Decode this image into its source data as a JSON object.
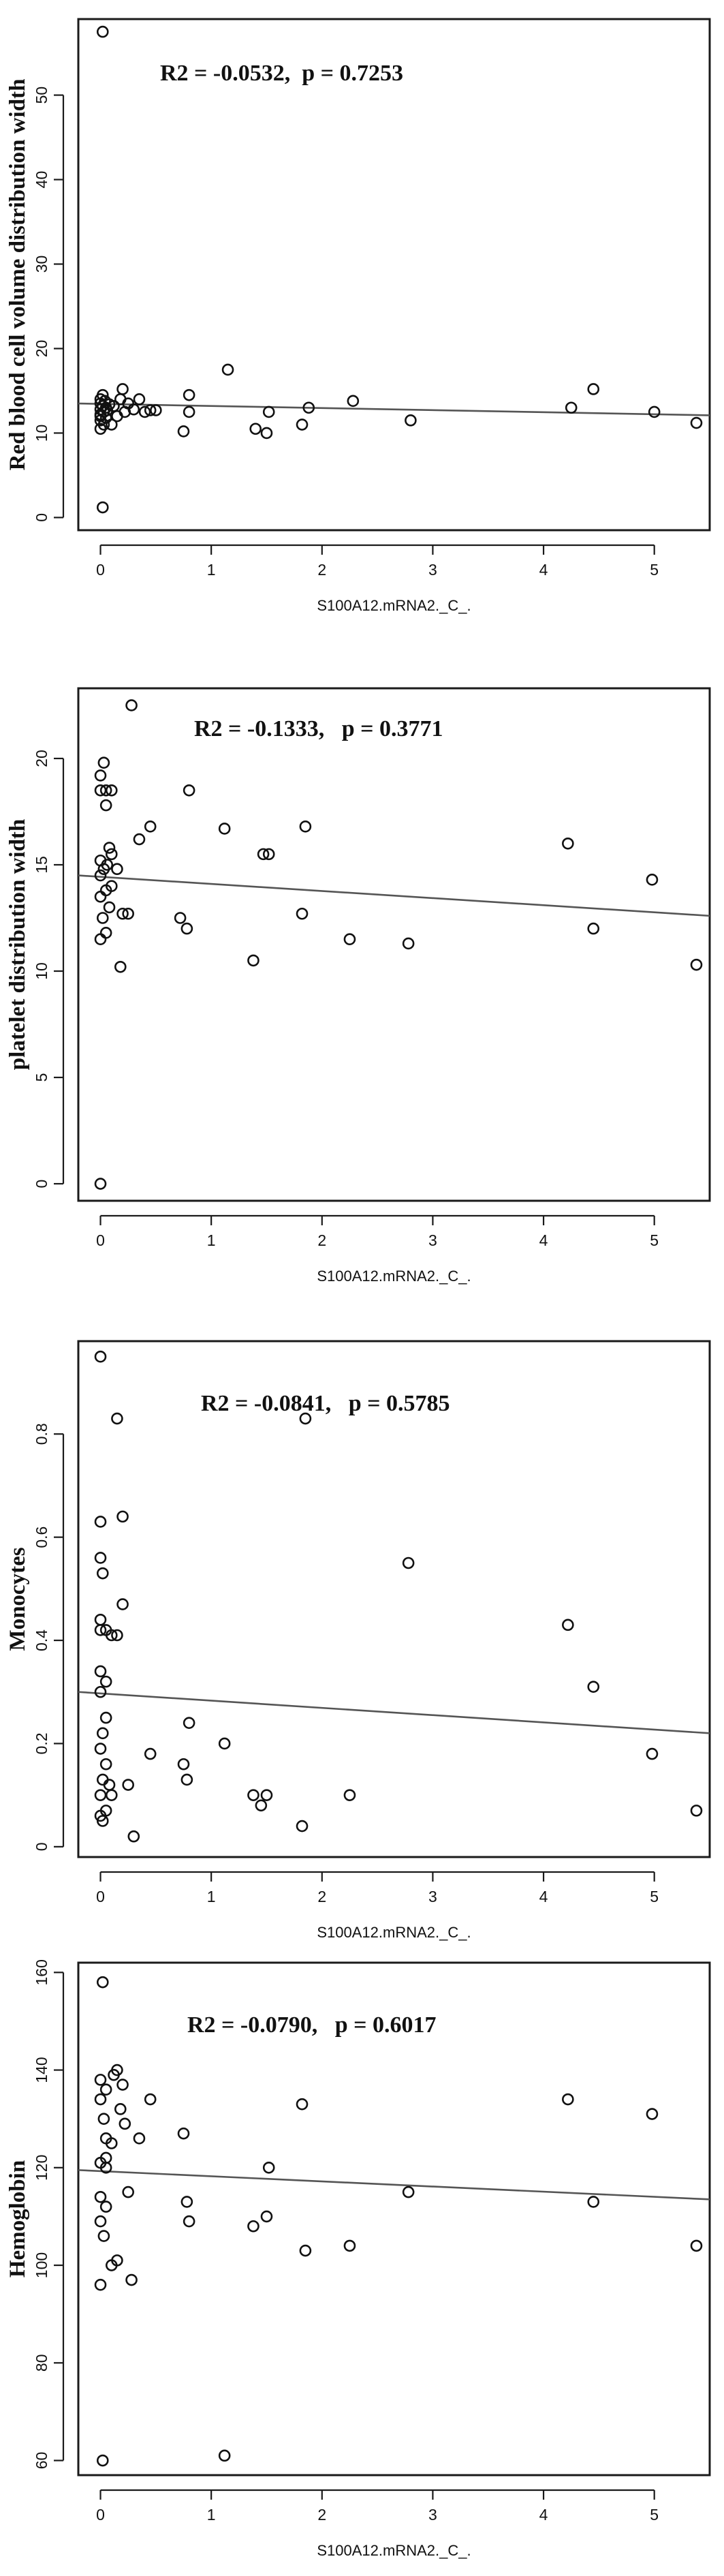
{
  "chart_data": [
    {
      "type": "scatter",
      "annotation": "R2 = -0.0532,  p = 0.7253",
      "xlabel": "S100A12.mRNA2._C_.",
      "ylabel": "Red blood cell volume distribution width",
      "xlim": [
        -0.2,
        5.5
      ],
      "ylim": [
        -1.5,
        59
      ],
      "xticks": [
        0,
        1,
        2,
        3,
        4,
        5
      ],
      "yticks": [
        0,
        10,
        20,
        30,
        40,
        50
      ],
      "fit_line": {
        "x": [
          -0.2,
          5.5
        ],
        "y": [
          13.5,
          12.1
        ]
      },
      "points": [
        [
          0.02,
          57.5
        ],
        [
          0.02,
          1.2
        ],
        [
          0.0,
          10.5
        ],
        [
          0.03,
          11.0
        ],
        [
          0.0,
          11.5
        ],
        [
          0.05,
          11.8
        ],
        [
          0.0,
          12.2
        ],
        [
          0.03,
          12.5
        ],
        [
          0.0,
          12.8
        ],
        [
          0.05,
          13.0
        ],
        [
          0.02,
          13.2
        ],
        [
          0.0,
          13.5
        ],
        [
          0.04,
          13.8
        ],
        [
          0.0,
          14.0
        ],
        [
          0.02,
          14.5
        ],
        [
          0.0,
          12.0
        ],
        [
          0.06,
          12.7
        ],
        [
          0.08,
          13.4
        ],
        [
          0.1,
          11.0
        ],
        [
          0.12,
          13.2
        ],
        [
          0.15,
          12.0
        ],
        [
          0.18,
          14.0
        ],
        [
          0.2,
          15.2
        ],
        [
          0.22,
          12.5
        ],
        [
          0.25,
          13.5
        ],
        [
          0.3,
          12.8
        ],
        [
          0.35,
          14.0
        ],
        [
          0.4,
          12.5
        ],
        [
          0.45,
          12.7
        ],
        [
          0.5,
          12.7
        ],
        [
          0.75,
          10.2
        ],
        [
          0.8,
          12.5
        ],
        [
          0.8,
          14.5
        ],
        [
          1.15,
          17.5
        ],
        [
          1.4,
          10.5
        ],
        [
          1.5,
          10.0
        ],
        [
          1.52,
          12.5
        ],
        [
          1.82,
          11.0
        ],
        [
          1.88,
          13.0
        ],
        [
          2.28,
          13.8
        ],
        [
          2.8,
          11.5
        ],
        [
          4.25,
          13.0
        ],
        [
          4.45,
          15.2
        ],
        [
          5.0,
          12.5
        ],
        [
          5.38,
          11.2
        ]
      ]
    },
    {
      "type": "scatter",
      "annotation": "R2 = -0.1333,   p = 0.3771",
      "xlabel": "S100A12.mRNA2._C_.",
      "ylabel": "platelet distribution width",
      "xlim": [
        -0.2,
        5.5
      ],
      "ylim": [
        -0.8,
        23.3
      ],
      "xticks": [
        0,
        1,
        2,
        3,
        4,
        5
      ],
      "yticks": [
        0,
        5,
        10,
        15,
        20
      ],
      "fit_line": {
        "x": [
          -0.2,
          5.5
        ],
        "y": [
          14.5,
          12.6
        ]
      },
      "points": [
        [
          0.0,
          0.0
        ],
        [
          0.0,
          11.5
        ],
        [
          0.05,
          11.8
        ],
        [
          0.02,
          12.5
        ],
        [
          0.08,
          13.0
        ],
        [
          0.0,
          13.5
        ],
        [
          0.05,
          13.8
        ],
        [
          0.1,
          14.0
        ],
        [
          0.0,
          14.5
        ],
        [
          0.03,
          14.8
        ],
        [
          0.06,
          15.0
        ],
        [
          0.0,
          15.2
        ],
        [
          0.1,
          15.5
        ],
        [
          0.08,
          15.8
        ],
        [
          0.0,
          18.5
        ],
        [
          0.05,
          18.5
        ],
        [
          0.1,
          18.5
        ],
        [
          0.0,
          19.2
        ],
        [
          0.03,
          19.8
        ],
        [
          0.05,
          17.8
        ],
        [
          0.15,
          14.8
        ],
        [
          0.2,
          12.7
        ],
        [
          0.18,
          10.2
        ],
        [
          0.25,
          12.7
        ],
        [
          0.28,
          22.5
        ],
        [
          0.35,
          16.2
        ],
        [
          0.45,
          16.8
        ],
        [
          0.72,
          12.5
        ],
        [
          0.78,
          12.0
        ],
        [
          0.8,
          18.5
        ],
        [
          1.12,
          16.7
        ],
        [
          1.38,
          10.5
        ],
        [
          1.47,
          15.5
        ],
        [
          1.52,
          15.5
        ],
        [
          1.82,
          12.7
        ],
        [
          1.85,
          16.8
        ],
        [
          2.25,
          11.5
        ],
        [
          2.78,
          11.3
        ],
        [
          4.22,
          16.0
        ],
        [
          4.45,
          12.0
        ],
        [
          4.98,
          14.3
        ],
        [
          5.38,
          10.3
        ]
      ]
    },
    {
      "type": "scatter",
      "annotation": "R2 = -0.0841,   p = 0.5785",
      "xlabel": "S100A12.mRNA2._C_.",
      "ylabel": "Monocytes",
      "xlim": [
        -0.2,
        5.5
      ],
      "ylim": [
        -0.02,
        0.98
      ],
      "xticks": [
        0,
        1,
        2,
        3,
        4,
        5
      ],
      "yticks": [
        0.0,
        0.2,
        0.4,
        0.6,
        0.8
      ],
      "fit_line": {
        "x": [
          -0.2,
          5.5
        ],
        "y": [
          0.3,
          0.22
        ]
      },
      "points": [
        [
          0.0,
          0.95
        ],
        [
          0.0,
          0.63
        ],
        [
          0.0,
          0.56
        ],
        [
          0.02,
          0.53
        ],
        [
          0.0,
          0.44
        ],
        [
          0.05,
          0.42
        ],
        [
          0.0,
          0.42
        ],
        [
          0.0,
          0.34
        ],
        [
          0.05,
          0.32
        ],
        [
          0.0,
          0.3
        ],
        [
          0.05,
          0.25
        ],
        [
          0.02,
          0.22
        ],
        [
          0.0,
          0.19
        ],
        [
          0.05,
          0.16
        ],
        [
          0.02,
          0.13
        ],
        [
          0.08,
          0.12
        ],
        [
          0.0,
          0.1
        ],
        [
          0.1,
          0.1
        ],
        [
          0.05,
          0.07
        ],
        [
          0.0,
          0.06
        ],
        [
          0.02,
          0.05
        ],
        [
          0.1,
          0.41
        ],
        [
          0.15,
          0.41
        ],
        [
          0.15,
          0.83
        ],
        [
          0.2,
          0.64
        ],
        [
          0.2,
          0.47
        ],
        [
          0.25,
          0.12
        ],
        [
          0.3,
          0.02
        ],
        [
          0.45,
          0.18
        ],
        [
          0.75,
          0.16
        ],
        [
          0.78,
          0.13
        ],
        [
          0.8,
          0.24
        ],
        [
          1.12,
          0.2
        ],
        [
          1.38,
          0.1
        ],
        [
          1.45,
          0.08
        ],
        [
          1.5,
          0.1
        ],
        [
          1.82,
          0.04
        ],
        [
          1.85,
          0.83
        ],
        [
          2.25,
          0.1
        ],
        [
          2.78,
          0.55
        ],
        [
          4.22,
          0.43
        ],
        [
          4.45,
          0.31
        ],
        [
          4.98,
          0.18
        ],
        [
          5.38,
          0.07
        ]
      ]
    },
    {
      "type": "scatter",
      "annotation": "R2 = -0.0790,   p = 0.6017",
      "xlabel": "S100A12.mRNA2._C_.",
      "ylabel": "Hemoglobin",
      "xlim": [
        -0.2,
        5.5
      ],
      "ylim": [
        57,
        162
      ],
      "xticks": [
        0,
        1,
        2,
        3,
        4,
        5
      ],
      "yticks": [
        60,
        80,
        100,
        120,
        140,
        160
      ],
      "fit_line": {
        "x": [
          -0.2,
          5.5
        ],
        "y": [
          119.5,
          113.5
        ]
      },
      "points": [
        [
          0.02,
          158
        ],
        [
          0.0,
          138
        ],
        [
          0.05,
          136
        ],
        [
          0.0,
          134
        ],
        [
          0.03,
          130
        ],
        [
          0.05,
          126
        ],
        [
          0.0,
          121
        ],
        [
          0.05,
          120
        ],
        [
          0.0,
          114
        ],
        [
          0.05,
          112
        ],
        [
          0.0,
          109
        ],
        [
          0.03,
          106
        ],
        [
          0.1,
          100
        ],
        [
          0.0,
          96
        ],
        [
          0.05,
          122
        ],
        [
          0.1,
          125
        ],
        [
          0.12,
          139
        ],
        [
          0.15,
          140
        ],
        [
          0.18,
          132
        ],
        [
          0.2,
          137
        ],
        [
          0.22,
          129
        ],
        [
          0.25,
          115
        ],
        [
          0.28,
          97
        ],
        [
          0.35,
          126
        ],
        [
          0.45,
          134
        ],
        [
          0.02,
          60
        ],
        [
          0.15,
          101
        ],
        [
          0.75,
          127
        ],
        [
          0.78,
          113
        ],
        [
          0.8,
          109
        ],
        [
          1.12,
          61
        ],
        [
          1.38,
          108
        ],
        [
          1.5,
          110
        ],
        [
          1.52,
          120
        ],
        [
          1.82,
          133
        ],
        [
          1.85,
          103
        ],
        [
          2.25,
          104
        ],
        [
          2.78,
          115
        ],
        [
          4.22,
          134
        ],
        [
          4.45,
          113
        ],
        [
          4.98,
          131
        ],
        [
          5.38,
          104
        ]
      ]
    }
  ]
}
